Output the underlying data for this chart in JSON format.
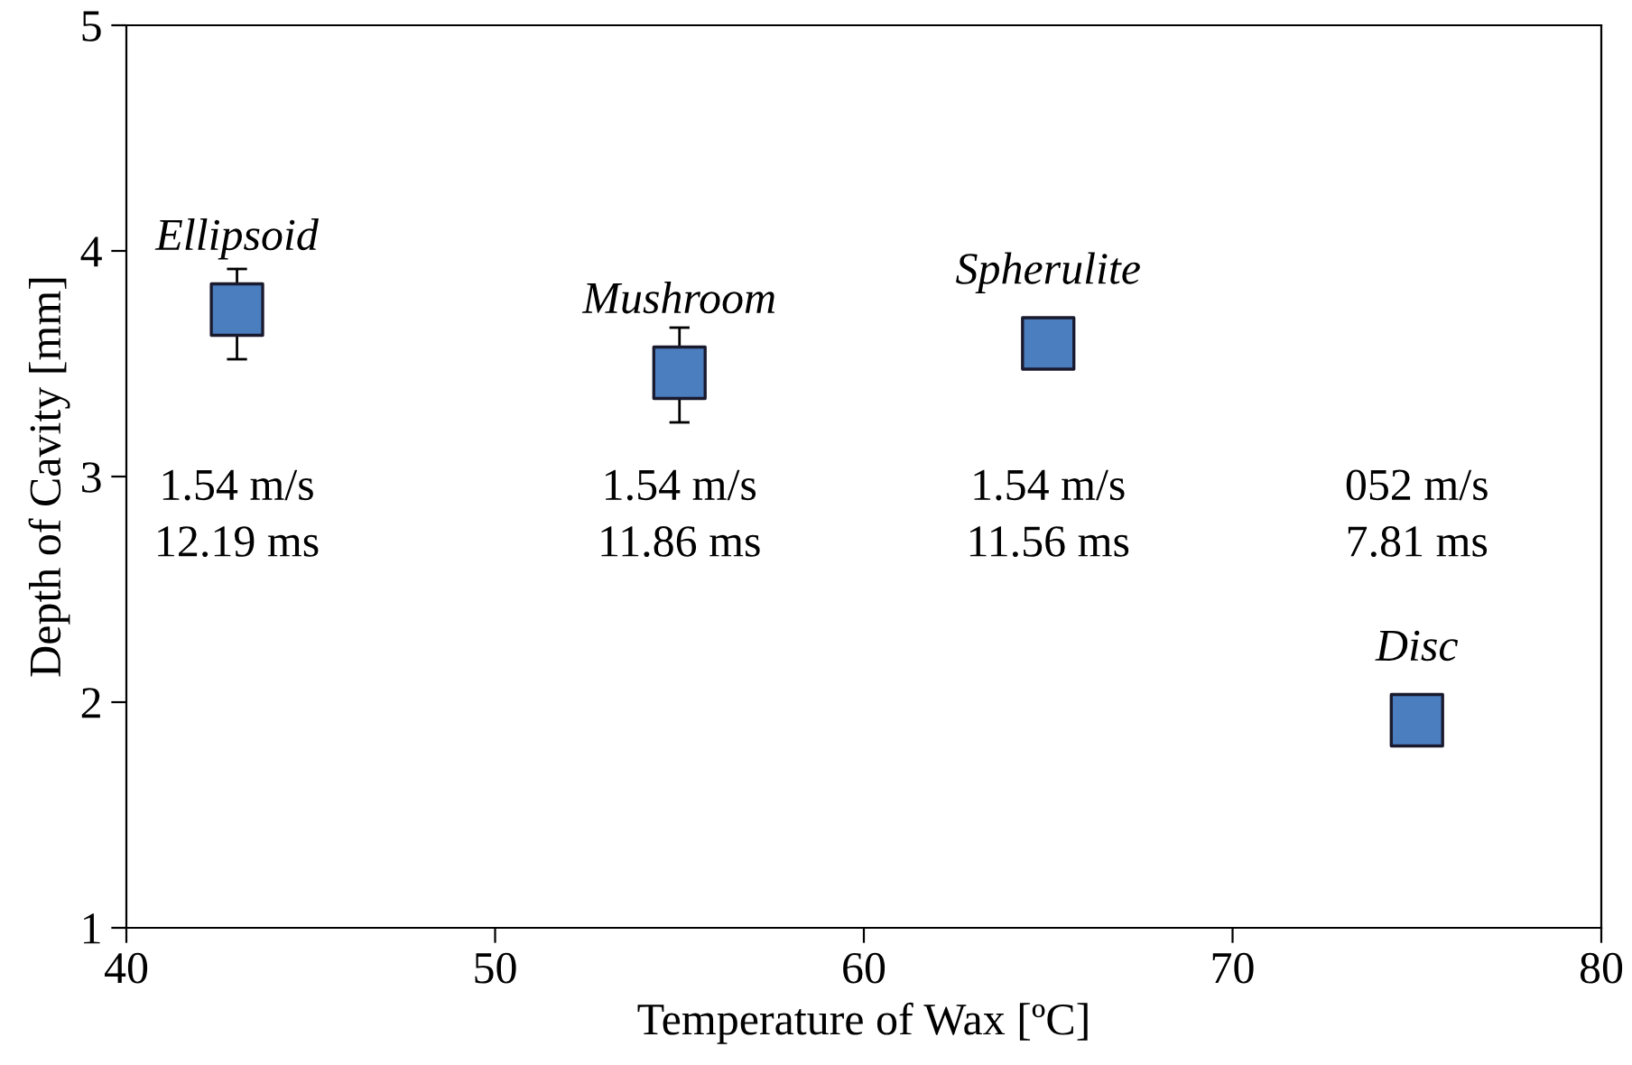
{
  "chart_data": {
    "type": "scatter",
    "xlabel": "Temperature of Wax [ºC]",
    "ylabel": "Depth of Cavity [mm]",
    "x": [
      43,
      55,
      65,
      75
    ],
    "series": [
      {
        "color": "#4a7ebf",
        "values": [
          3.74,
          3.46,
          3.59,
          1.92
        ],
        "errors": [
          [
            3.52,
            3.92
          ],
          [
            3.24,
            3.66
          ],
          null,
          null
        ]
      }
    ],
    "xlim": [
      40,
      80
    ],
    "xticks": [
      40,
      50,
      60,
      70,
      80
    ],
    "ylim": [
      1,
      5
    ],
    "yticks": [
      1,
      2,
      3,
      4,
      5
    ],
    "grid": false,
    "legend": false,
    "marker": "square",
    "annotations": [
      {
        "text": "Ellipsoid",
        "x": 43,
        "y": 3.74
      },
      {
        "text": "Mushroom",
        "x": 55,
        "y": 3.46
      },
      {
        "text": "Spherulite",
        "x": 65,
        "y": 3.59
      },
      {
        "text": "Disc",
        "x": 75,
        "y": 1.92
      },
      "1.54 m/s\n12.19 ms",
      "1.54 m/s\n11.86 ms",
      "1.54 m/s\n11.56 ms",
      "052 m/s\n7.81 ms"
    ]
  }
}
